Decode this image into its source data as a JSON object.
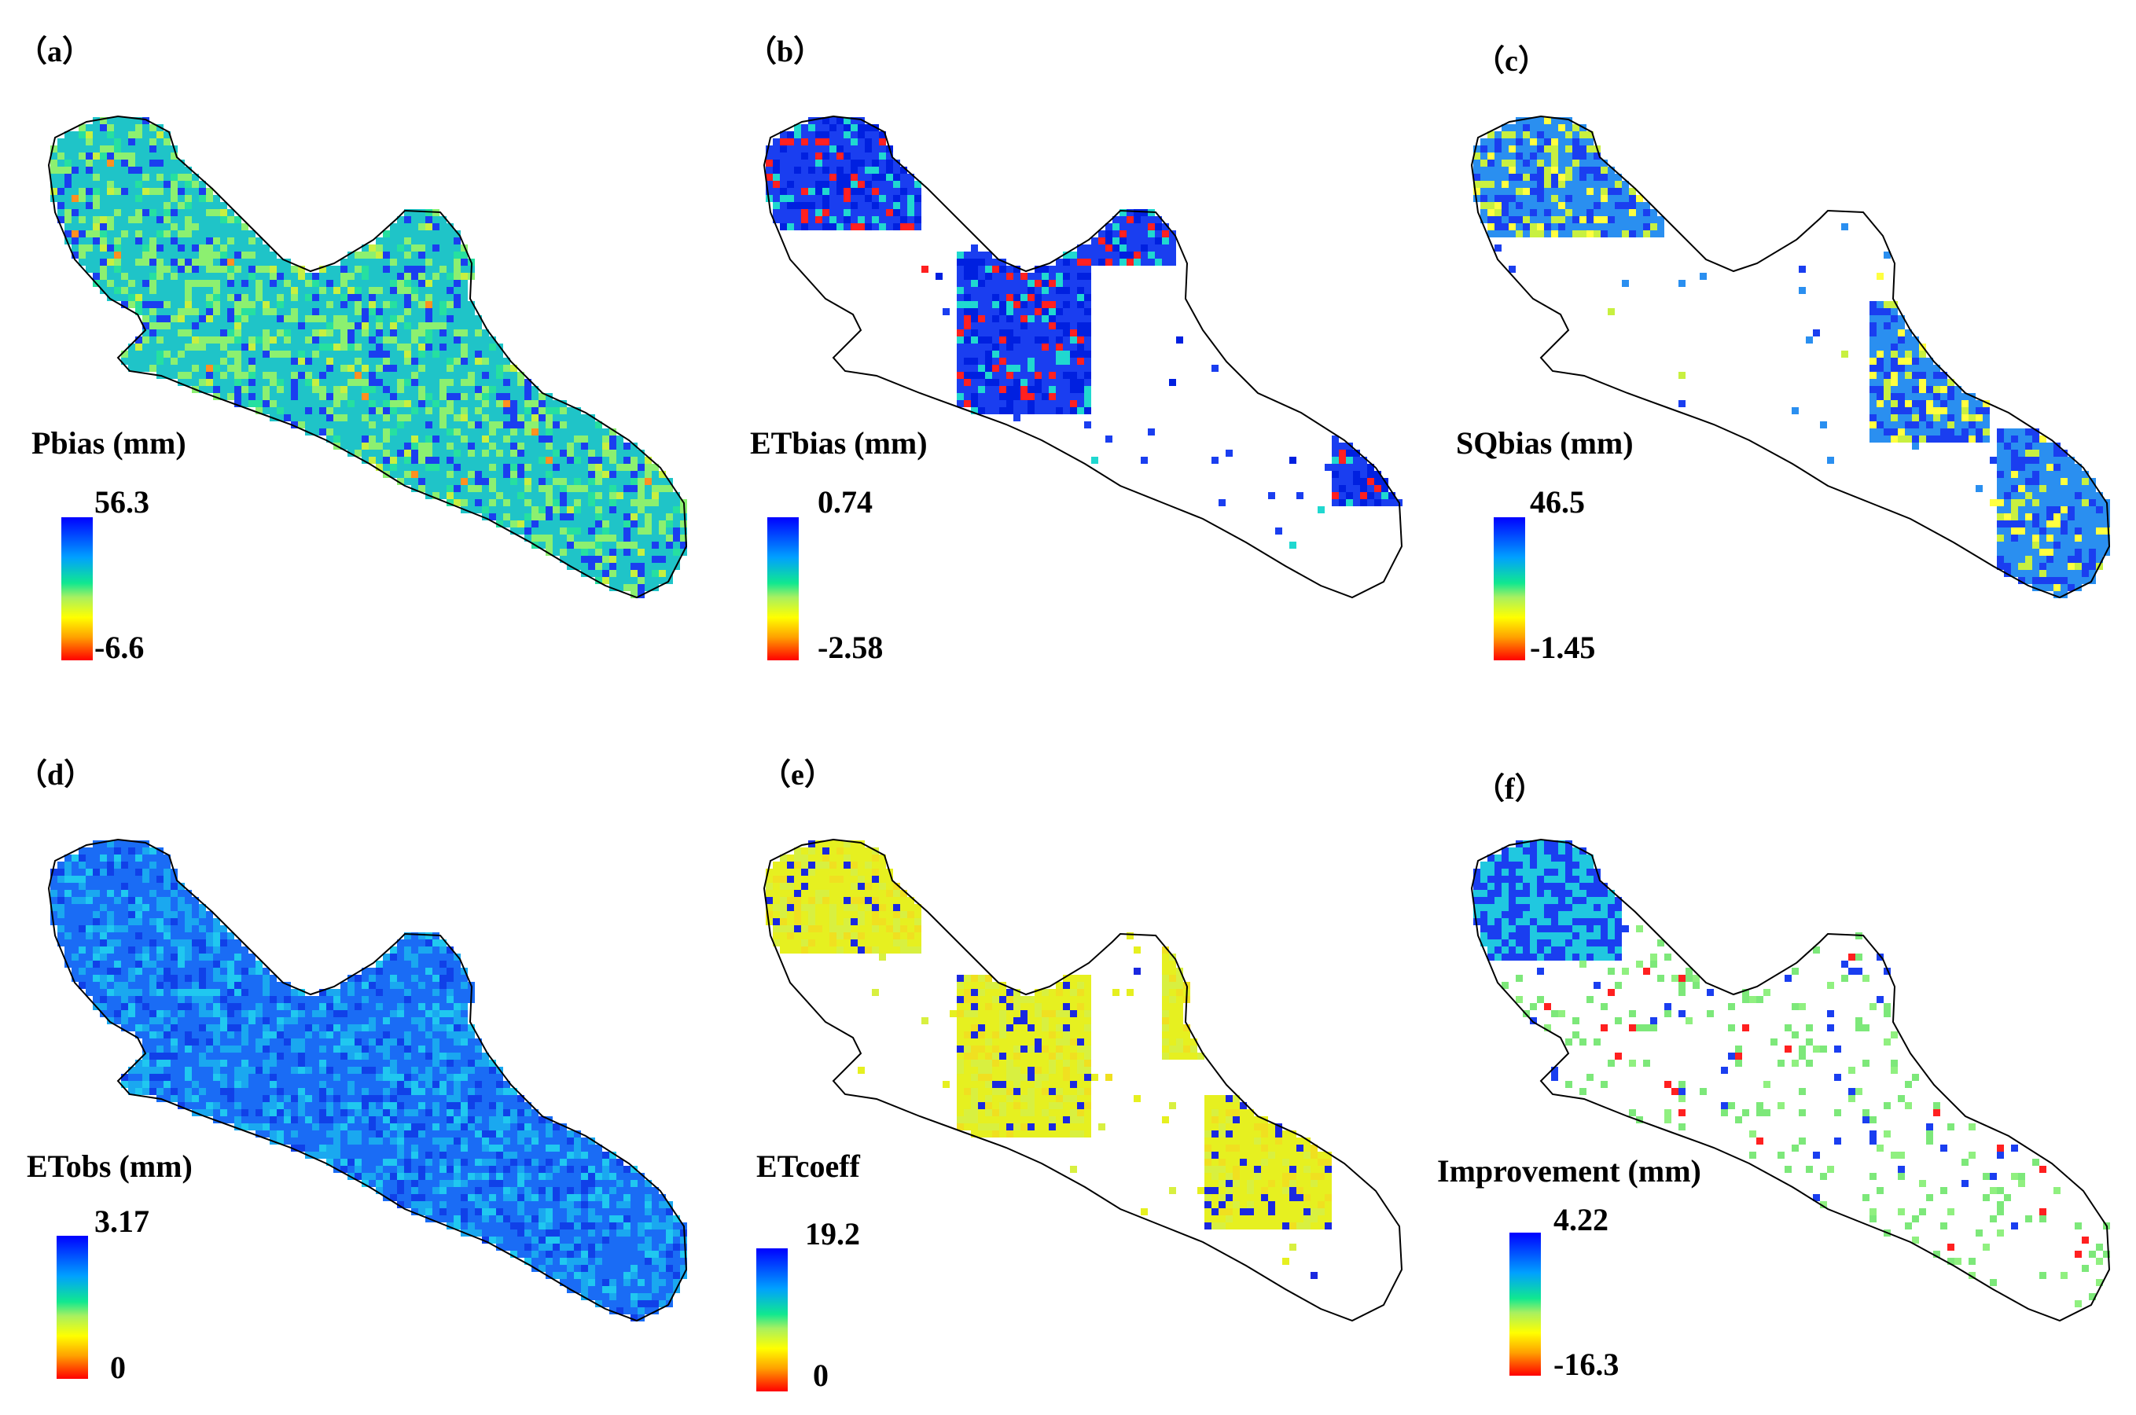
{
  "panels": [
    {
      "id": "a",
      "label": "（a）",
      "title": "Pbias (mm)",
      "max": "56.3",
      "min": "-6.6",
      "coverage": "full",
      "base": "#1fc4c8"
    },
    {
      "id": "b",
      "label": "（b）",
      "title": "ETbias (mm)",
      "max": "0.74",
      "min": "-2.58",
      "coverage": "partial",
      "base": "#1a3ef0"
    },
    {
      "id": "c",
      "label": "（c）",
      "title": "SQbias (mm)",
      "max": "46.5",
      "min": "-1.45",
      "coverage": "partial",
      "base": "#2a8ff0"
    },
    {
      "id": "d",
      "label": "（d）",
      "title": "ETobs (mm)",
      "max": "3.17",
      "min": "0",
      "coverage": "full",
      "base": "#1a6cf5"
    },
    {
      "id": "e",
      "label": "（e）",
      "title": "ETcoeff",
      "max": "19.2",
      "min": "0",
      "coverage": "partial",
      "base": "#e6f020"
    },
    {
      "id": "f",
      "label": "（f）",
      "title": "Improvement (mm)",
      "max": "4.22",
      "min": "-16.3",
      "coverage": "sparse",
      "base": "#7de87a"
    }
  ],
  "colors": {
    "ramp_top": "#0000ff",
    "ramp_mid": "#10e890",
    "ramp_bottom": "#ff0000",
    "outline": "#000000"
  }
}
